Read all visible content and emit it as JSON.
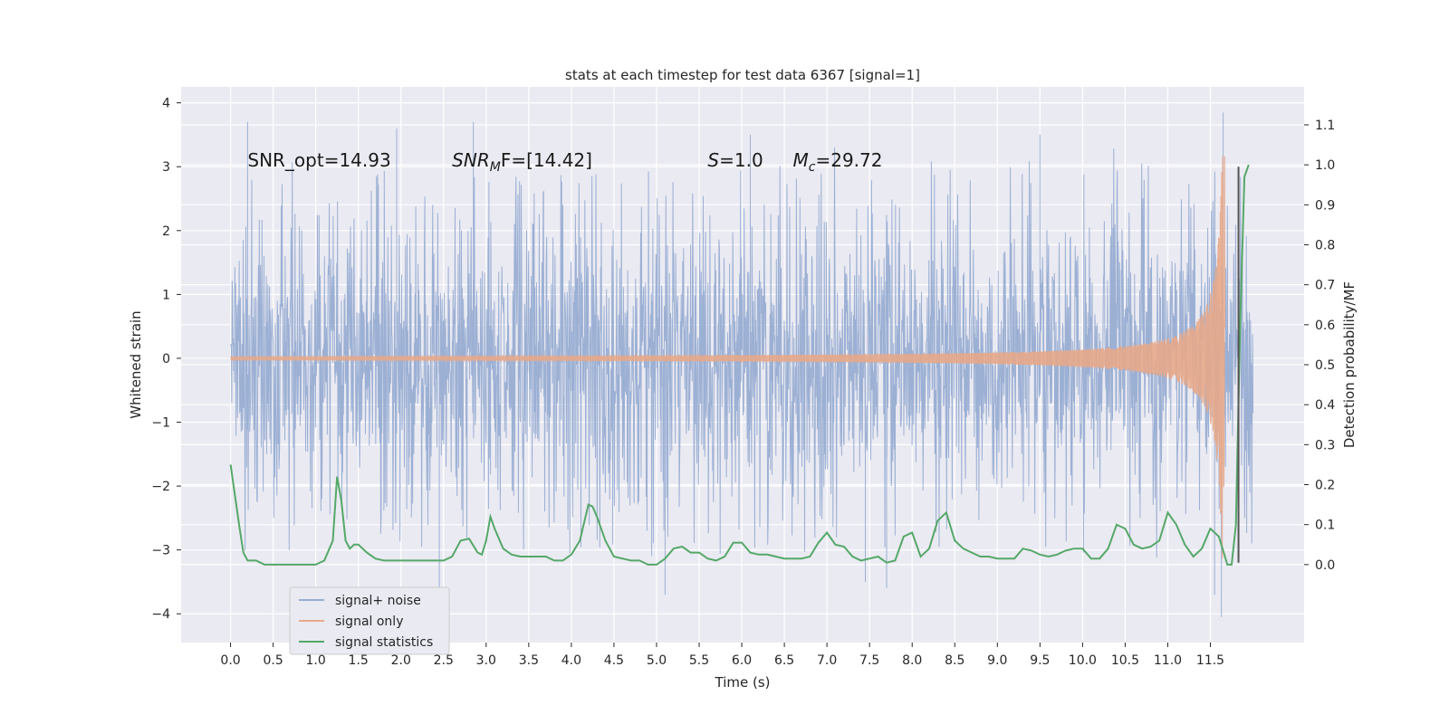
{
  "chart_data": {
    "type": "line",
    "title": "stats at each timestep for test data 6367 [signal=1]",
    "xlabel": "Time (s)",
    "ylabel": "Whitened strain",
    "y2label": "Detection probability/MF",
    "xlim": [
      -0.58,
      12.6
    ],
    "ylim": [
      -4.45,
      4.25
    ],
    "y2lim": [
      -0.195,
      1.195
    ],
    "x_ticks": [
      0.0,
      0.5,
      1.0,
      1.5,
      2.0,
      2.5,
      3.0,
      3.5,
      4.0,
      4.5,
      5.0,
      5.5,
      6.0,
      6.5,
      7.0,
      7.5,
      8.0,
      8.5,
      9.0,
      9.5,
      10.0,
      10.5,
      11.0,
      11.5
    ],
    "x_tick_labels": [
      "0.0",
      "0.5",
      "1.0",
      "1.5",
      "2.0",
      "2.5",
      "3.0",
      "3.5",
      "4.0",
      "4.5",
      "5.0",
      "5.5",
      "6.0",
      "6.5",
      "7.0",
      "7.5",
      "8.0",
      "8.5",
      "9.0",
      "9.5",
      "10.0",
      "10.5",
      "11.0",
      "11.5"
    ],
    "y_ticks": [
      4,
      3,
      2,
      1,
      0,
      -1,
      -2,
      -3,
      -4
    ],
    "y_tick_labels": [
      "4",
      "3",
      "2",
      "1",
      "0",
      "−1",
      "−2",
      "−3",
      "−4"
    ],
    "y2_ticks": [
      1.1,
      1.0,
      0.9,
      0.8,
      0.7,
      0.6,
      0.5,
      0.4,
      0.3,
      0.2,
      0.1,
      0.0
    ],
    "y2_tick_labels": [
      "1.1",
      "1.0",
      "0.9",
      "0.8",
      "0.7",
      "0.6",
      "0.5",
      "0.4",
      "0.3",
      "0.2",
      "0.1",
      "0.0"
    ],
    "grid": true,
    "legend_position": "lower-left",
    "annotations": [
      {
        "prefix": "SNR_opt=14.93",
        "main": "",
        "sub": "",
        "suffix": "",
        "x": 0.2,
        "y": 3.0
      },
      {
        "prefix": "",
        "main": "SNR",
        "sub": "M",
        "suffix": "F=[14.42]",
        "x": 2.6,
        "y": 3.0
      },
      {
        "prefix": "",
        "main": "S",
        "sub": "",
        "suffix": "=1.0",
        "x": 5.6,
        "y": 3.0
      },
      {
        "prefix": "",
        "main": "M",
        "sub": "c",
        "suffix": "=29.72",
        "x": 6.6,
        "y": 3.0
      }
    ],
    "series": [
      {
        "name": "signal+ noise",
        "color": "#98add2",
        "axis": "left",
        "t_start": 0.0,
        "t_end": 12.0,
        "typical_envelope": 1.8,
        "extremes": [
          {
            "x": 0.2,
            "y": 3.7
          },
          {
            "x": 1.95,
            "y": 3.6
          },
          {
            "x": 2.45,
            "y": -3.85
          },
          {
            "x": 2.85,
            "y": 3.7
          },
          {
            "x": 5.1,
            "y": -3.7
          },
          {
            "x": 6.1,
            "y": 3.5
          },
          {
            "x": 7.45,
            "y": -3.5
          },
          {
            "x": 7.7,
            "y": -3.6
          },
          {
            "x": 9.5,
            "y": 3.5
          },
          {
            "x": 11.55,
            "y": -3.7
          },
          {
            "x": 11.65,
            "y": 3.85
          },
          {
            "x": 11.63,
            "y": -4.05
          }
        ]
      },
      {
        "name": "signal only",
        "color": "#e7a98a",
        "axis": "left",
        "t_start": 0.0,
        "t_end": 11.67,
        "peak_amplitude": 3.3
      },
      {
        "name": "signal statistics",
        "color": "#55a868",
        "axis": "right",
        "x": [
          0.0,
          0.1,
          0.15,
          0.2,
          0.25,
          0.3,
          0.35,
          0.4,
          0.5,
          0.6,
          0.7,
          0.8,
          0.9,
          1.0,
          1.1,
          1.2,
          1.25,
          1.3,
          1.35,
          1.4,
          1.45,
          1.5,
          1.55,
          1.6,
          1.7,
          1.8,
          1.9,
          2.0,
          2.1,
          2.2,
          2.3,
          2.4,
          2.5,
          2.6,
          2.7,
          2.8,
          2.9,
          2.95,
          3.0,
          3.05,
          3.1,
          3.2,
          3.3,
          3.4,
          3.5,
          3.6,
          3.7,
          3.8,
          3.9,
          4.0,
          4.1,
          4.2,
          4.25,
          4.3,
          4.4,
          4.5,
          4.6,
          4.7,
          4.8,
          4.9,
          5.0,
          5.1,
          5.2,
          5.3,
          5.4,
          5.5,
          5.6,
          5.7,
          5.8,
          5.9,
          6.0,
          6.1,
          6.2,
          6.3,
          6.4,
          6.5,
          6.6,
          6.7,
          6.8,
          6.9,
          7.0,
          7.1,
          7.2,
          7.3,
          7.4,
          7.5,
          7.6,
          7.7,
          7.8,
          7.9,
          8.0,
          8.1,
          8.2,
          8.3,
          8.4,
          8.5,
          8.6,
          8.7,
          8.8,
          8.9,
          9.0,
          9.1,
          9.2,
          9.3,
          9.4,
          9.5,
          9.6,
          9.7,
          9.8,
          9.9,
          10.0,
          10.1,
          10.2,
          10.3,
          10.4,
          10.5,
          10.6,
          10.7,
          10.8,
          10.9,
          11.0,
          11.1,
          11.2,
          11.3,
          11.4,
          11.5,
          11.6,
          11.7,
          11.75,
          11.8,
          11.85,
          11.9,
          11.95
        ],
        "values": [
          0.25,
          0.1,
          0.03,
          0.01,
          0.01,
          0.01,
          0.005,
          0.0,
          0.0,
          0.0,
          0.0,
          0.0,
          0.0,
          0.0,
          0.01,
          0.06,
          0.22,
          0.16,
          0.06,
          0.04,
          0.05,
          0.05,
          0.04,
          0.03,
          0.015,
          0.01,
          0.01,
          0.01,
          0.01,
          0.01,
          0.01,
          0.01,
          0.01,
          0.02,
          0.06,
          0.065,
          0.03,
          0.025,
          0.06,
          0.12,
          0.09,
          0.04,
          0.025,
          0.02,
          0.02,
          0.02,
          0.02,
          0.01,
          0.01,
          0.025,
          0.06,
          0.15,
          0.145,
          0.12,
          0.06,
          0.02,
          0.015,
          0.01,
          0.01,
          0.0,
          0.0,
          0.015,
          0.04,
          0.045,
          0.03,
          0.03,
          0.015,
          0.01,
          0.02,
          0.055,
          0.055,
          0.03,
          0.025,
          0.025,
          0.02,
          0.015,
          0.015,
          0.015,
          0.02,
          0.055,
          0.08,
          0.05,
          0.045,
          0.02,
          0.01,
          0.015,
          0.02,
          0.005,
          0.01,
          0.07,
          0.08,
          0.02,
          0.04,
          0.11,
          0.13,
          0.06,
          0.04,
          0.03,
          0.02,
          0.02,
          0.015,
          0.015,
          0.015,
          0.04,
          0.035,
          0.025,
          0.02,
          0.025,
          0.035,
          0.04,
          0.04,
          0.015,
          0.015,
          0.04,
          0.1,
          0.09,
          0.05,
          0.04,
          0.045,
          0.06,
          0.13,
          0.1,
          0.05,
          0.02,
          0.04,
          0.09,
          0.07,
          0.0,
          0.0,
          0.1,
          0.6,
          0.97,
          1.0
        ]
      },
      {
        "name": "",
        "color": "#555555",
        "axis": "left",
        "type": "vline",
        "x": 11.83,
        "y_from": -3.2,
        "y_to": 3.0
      }
    ]
  }
}
